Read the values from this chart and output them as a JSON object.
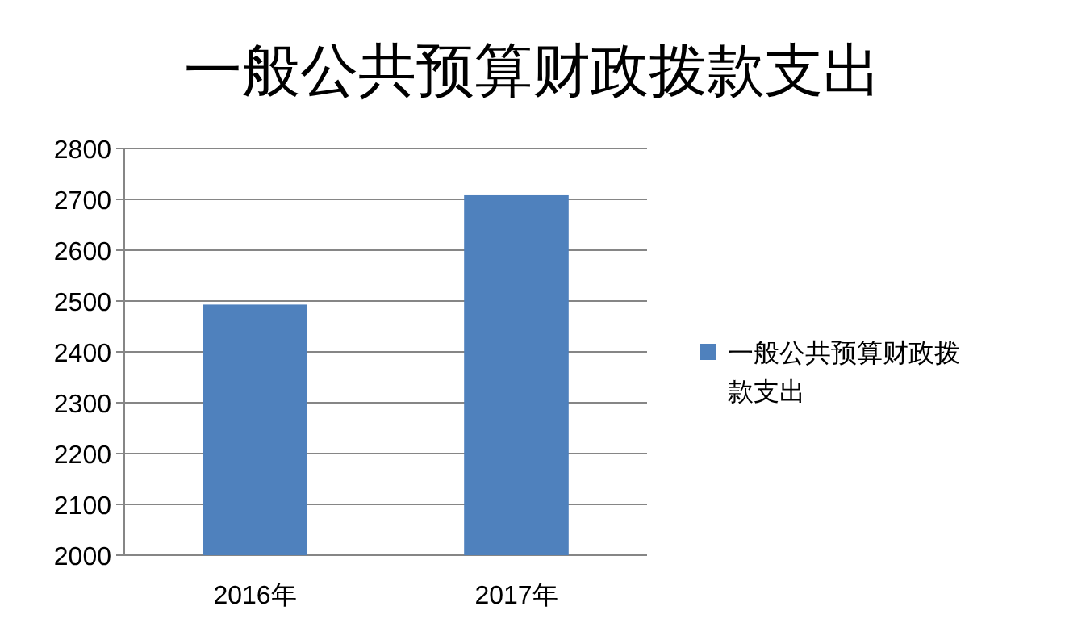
{
  "chart_data": {
    "type": "bar",
    "title": "一般公共预算财政拨款支出",
    "categories": [
      "2016年",
      "2017年"
    ],
    "series": [
      {
        "name": "一般公共预算财政拨款支出",
        "color": "#4f81bd",
        "values": [
          2493,
          2708
        ]
      }
    ],
    "ylim": [
      2000,
      2800
    ],
    "yticks": [
      2000,
      2100,
      2200,
      2300,
      2400,
      2500,
      2600,
      2700,
      2800
    ],
    "grid": "y",
    "legend": "right"
  }
}
